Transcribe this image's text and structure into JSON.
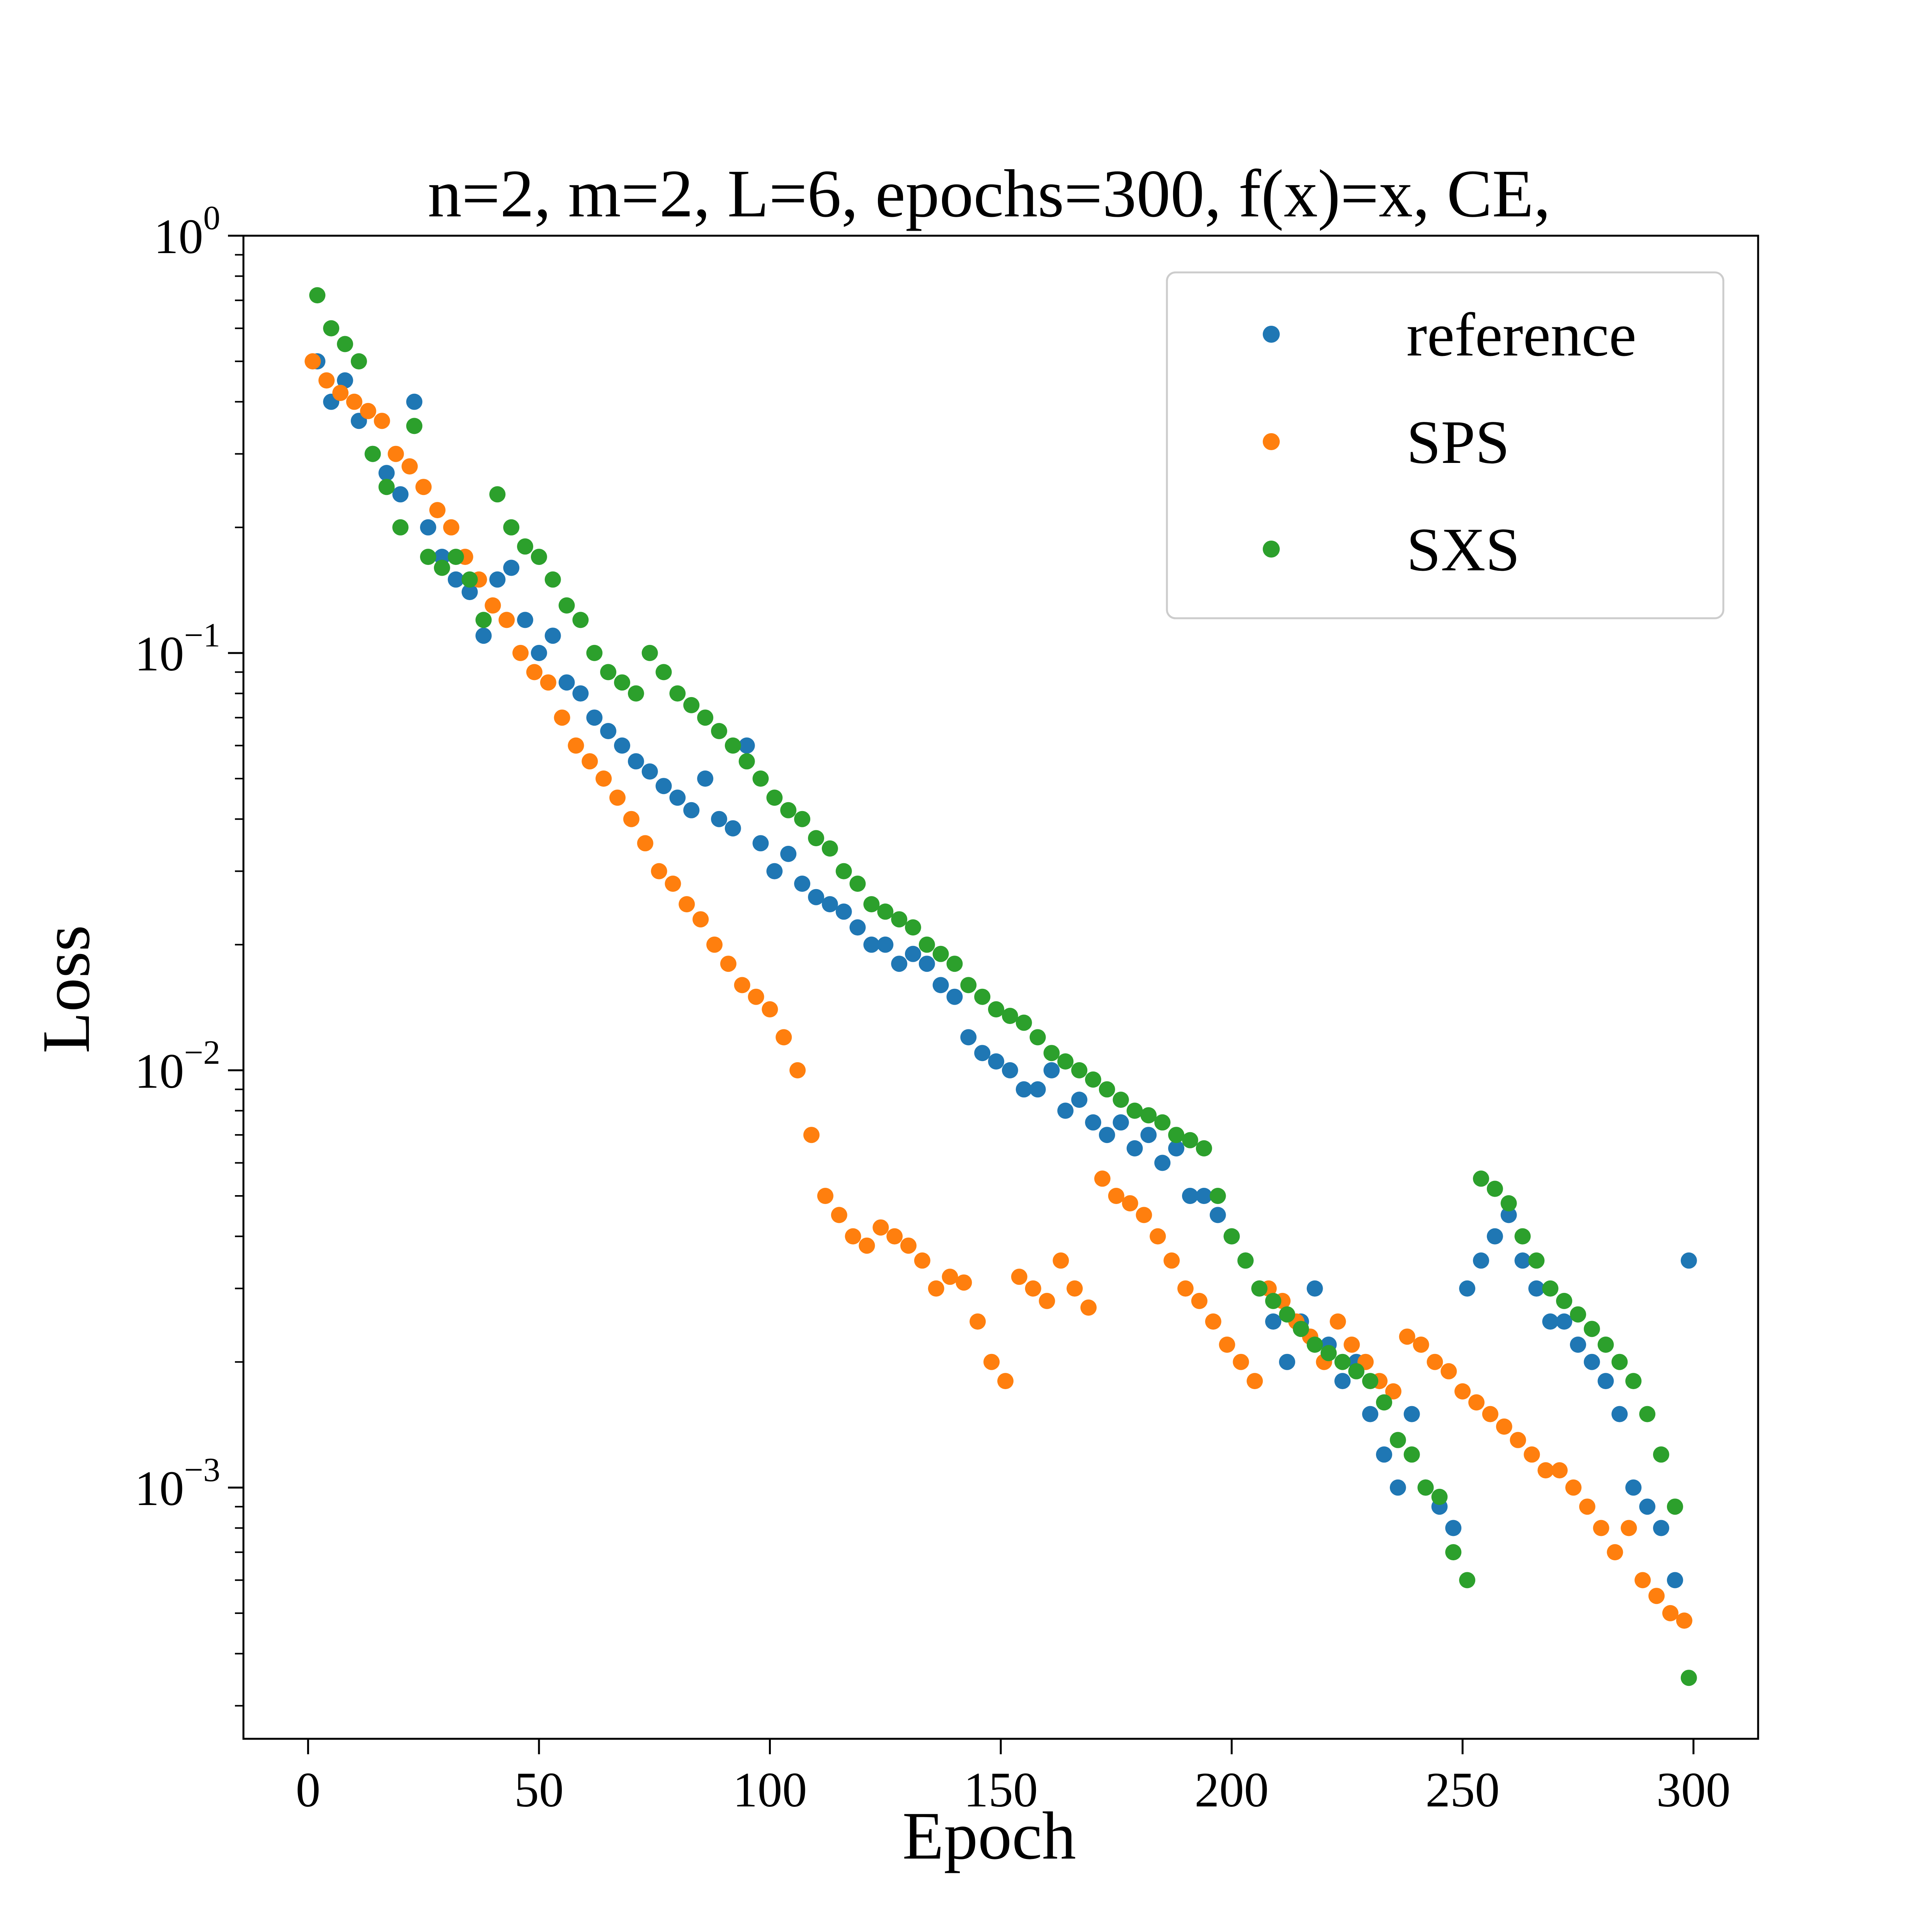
{
  "chart_data": {
    "type": "scatter",
    "title": "n=2, m=2, L=6, epochs=300, f(x)=x, CE,",
    "xlabel": "Epoch",
    "ylabel": "Loss",
    "xlim": [
      -14,
      314
    ],
    "ylim": [
      0.00025,
      1.0
    ],
    "yscale": "log",
    "x_ticks": [
      0,
      50,
      100,
      150,
      200,
      250,
      300
    ],
    "x_tick_labels": [
      "0",
      "50",
      "100",
      "150",
      "200",
      "250",
      "300"
    ],
    "y_ticks": [
      0.001,
      0.01,
      0.1,
      1.0
    ],
    "y_tick_labels": [
      {
        "base": "10",
        "exp": "−3"
      },
      {
        "base": "10",
        "exp": "−2"
      },
      {
        "base": "10",
        "exp": "−1"
      },
      {
        "base": "10",
        "exp": "0"
      }
    ],
    "grid": false,
    "legend_position": "top-right",
    "series": [
      {
        "name": "reference",
        "color": "#1f77b4",
        "x": [
          2,
          5,
          8,
          11,
          14,
          17,
          20,
          23,
          26,
          29,
          32,
          35,
          38,
          41,
          44,
          47,
          50,
          53,
          56,
          59,
          62,
          65,
          68,
          71,
          74,
          77,
          80,
          83,
          86,
          89,
          92,
          95,
          98,
          101,
          104,
          107,
          110,
          113,
          116,
          119,
          122,
          125,
          128,
          131,
          134,
          137,
          140,
          143,
          146,
          149,
          152,
          155,
          158,
          161,
          164,
          167,
          170,
          173,
          176,
          179,
          182,
          185,
          188,
          191,
          194,
          197,
          200,
          203,
          206,
          209,
          212,
          215,
          218,
          221,
          224,
          227,
          230,
          233,
          236,
          239,
          242,
          245,
          248,
          251,
          254,
          257,
          260,
          263,
          266,
          269,
          272,
          275,
          278,
          281,
          284,
          287,
          290,
          293,
          296,
          299
        ],
        "y": [
          0.5,
          0.4,
          0.45,
          0.36,
          0.3,
          0.27,
          0.24,
          0.4,
          0.2,
          0.17,
          0.15,
          0.14,
          0.11,
          0.15,
          0.16,
          0.12,
          0.1,
          0.11,
          0.085,
          0.08,
          0.07,
          0.065,
          0.06,
          0.055,
          0.052,
          0.048,
          0.045,
          0.042,
          0.05,
          0.04,
          0.038,
          0.06,
          0.035,
          0.03,
          0.033,
          0.028,
          0.026,
          0.025,
          0.024,
          0.022,
          0.02,
          0.02,
          0.018,
          0.019,
          0.018,
          0.016,
          0.015,
          0.012,
          0.011,
          0.0105,
          0.01,
          0.009,
          0.009,
          0.01,
          0.008,
          0.0085,
          0.0075,
          0.007,
          0.0075,
          0.0065,
          0.007,
          0.006,
          0.0065,
          0.005,
          0.005,
          0.0045,
          0.004,
          0.0035,
          0.003,
          0.0025,
          0.002,
          0.0025,
          0.003,
          0.0022,
          0.0018,
          0.002,
          0.0015,
          0.0012,
          0.001,
          0.0015,
          0.001,
          0.0009,
          0.0008,
          0.003,
          0.0035,
          0.004,
          0.0045,
          0.0035,
          0.003,
          0.0025,
          0.0025,
          0.0022,
          0.002,
          0.0018,
          0.0015,
          0.001,
          0.0009,
          0.0008,
          0.0006,
          0.0035
        ]
      },
      {
        "name": "SPS",
        "color": "#ff7f0e",
        "x": [
          1,
          4,
          7,
          10,
          13,
          16,
          19,
          22,
          25,
          28,
          31,
          34,
          37,
          40,
          43,
          46,
          49,
          52,
          55,
          58,
          61,
          64,
          67,
          70,
          73,
          76,
          79,
          82,
          85,
          88,
          91,
          94,
          97,
          100,
          103,
          106,
          109,
          112,
          115,
          118,
          121,
          124,
          127,
          130,
          133,
          136,
          139,
          142,
          145,
          148,
          151,
          154,
          157,
          160,
          163,
          166,
          169,
          172,
          175,
          178,
          181,
          184,
          187,
          190,
          193,
          196,
          199,
          202,
          205,
          208,
          211,
          214,
          217,
          220,
          223,
          226,
          229,
          232,
          235,
          238,
          241,
          244,
          247,
          250,
          253,
          256,
          259,
          262,
          265,
          268,
          271,
          274,
          277,
          280,
          283,
          286,
          289,
          292,
          295,
          298
        ],
        "y": [
          0.5,
          0.45,
          0.42,
          0.4,
          0.38,
          0.36,
          0.3,
          0.28,
          0.25,
          0.22,
          0.2,
          0.17,
          0.15,
          0.13,
          0.12,
          0.1,
          0.09,
          0.085,
          0.07,
          0.06,
          0.055,
          0.05,
          0.045,
          0.04,
          0.035,
          0.03,
          0.028,
          0.025,
          0.023,
          0.02,
          0.018,
          0.016,
          0.015,
          0.014,
          0.012,
          0.01,
          0.007,
          0.005,
          0.0045,
          0.004,
          0.0038,
          0.0042,
          0.004,
          0.0038,
          0.0035,
          0.003,
          0.0032,
          0.0031,
          0.0025,
          0.002,
          0.0018,
          0.0032,
          0.003,
          0.0028,
          0.0035,
          0.003,
          0.0027,
          0.0055,
          0.005,
          0.0048,
          0.0045,
          0.004,
          0.0035,
          0.003,
          0.0028,
          0.0025,
          0.0022,
          0.002,
          0.0018,
          0.003,
          0.0028,
          0.0025,
          0.0023,
          0.002,
          0.0025,
          0.0022,
          0.002,
          0.0018,
          0.0017,
          0.0023,
          0.0022,
          0.002,
          0.0019,
          0.0017,
          0.0016,
          0.0015,
          0.0014,
          0.0013,
          0.0012,
          0.0011,
          0.0011,
          0.001,
          0.0009,
          0.0008,
          0.0007,
          0.0008,
          0.0006,
          0.00055,
          0.0005,
          0.00048
        ]
      },
      {
        "name": "SXS",
        "color": "#2ca02c",
        "x": [
          2,
          5,
          8,
          11,
          14,
          17,
          20,
          23,
          26,
          29,
          32,
          35,
          38,
          41,
          44,
          47,
          50,
          53,
          56,
          59,
          62,
          65,
          68,
          71,
          74,
          77,
          80,
          83,
          86,
          89,
          92,
          95,
          98,
          101,
          104,
          107,
          110,
          113,
          116,
          119,
          122,
          125,
          128,
          131,
          134,
          137,
          140,
          143,
          146,
          149,
          152,
          155,
          158,
          161,
          164,
          167,
          170,
          173,
          176,
          179,
          182,
          185,
          188,
          191,
          194,
          197,
          200,
          203,
          206,
          209,
          212,
          215,
          218,
          221,
          224,
          227,
          230,
          233,
          236,
          239,
          242,
          245,
          248,
          251,
          254,
          257,
          260,
          263,
          266,
          269,
          272,
          275,
          278,
          281,
          284,
          287,
          290,
          293,
          296,
          299
        ],
        "y": [
          0.72,
          0.6,
          0.55,
          0.5,
          0.3,
          0.25,
          0.2,
          0.35,
          0.17,
          0.16,
          0.17,
          0.15,
          0.12,
          0.24,
          0.2,
          0.18,
          0.17,
          0.15,
          0.13,
          0.12,
          0.1,
          0.09,
          0.085,
          0.08,
          0.1,
          0.09,
          0.08,
          0.075,
          0.07,
          0.065,
          0.06,
          0.055,
          0.05,
          0.045,
          0.042,
          0.04,
          0.036,
          0.034,
          0.03,
          0.028,
          0.025,
          0.024,
          0.023,
          0.022,
          0.02,
          0.019,
          0.018,
          0.016,
          0.015,
          0.014,
          0.0135,
          0.013,
          0.012,
          0.011,
          0.0105,
          0.01,
          0.0095,
          0.009,
          0.0085,
          0.008,
          0.0078,
          0.0075,
          0.007,
          0.0068,
          0.0065,
          0.005,
          0.004,
          0.0035,
          0.003,
          0.0028,
          0.0026,
          0.0024,
          0.0022,
          0.0021,
          0.002,
          0.0019,
          0.0018,
          0.0016,
          0.0013,
          0.0012,
          0.001,
          0.00095,
          0.0007,
          0.0006,
          0.0055,
          0.0052,
          0.0048,
          0.004,
          0.0035,
          0.003,
          0.0028,
          0.0026,
          0.0024,
          0.0022,
          0.002,
          0.0018,
          0.0015,
          0.0012,
          0.0009,
          0.00035
        ]
      }
    ]
  }
}
